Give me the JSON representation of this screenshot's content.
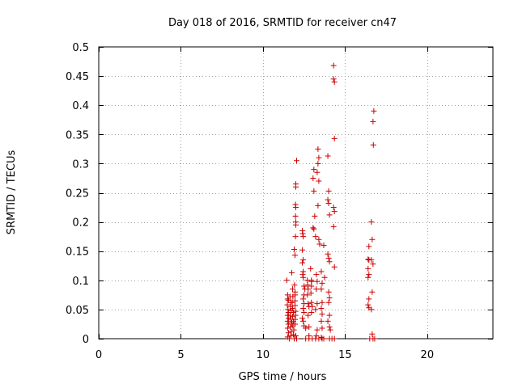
{
  "chart_data": {
    "type": "scatter",
    "title": "Day 018 of 2016, SRMTID for receiver cn47",
    "xlabel": "GPS time / hours",
    "ylabel": "SRMTID / TECUs",
    "xlim": [
      0,
      24
    ],
    "ylim": [
      0,
      0.5
    ],
    "xticks": [
      0,
      5,
      10,
      15,
      20
    ],
    "xtick_labels": [
      "0",
      "5",
      "10",
      "15",
      "20"
    ],
    "yticks": [
      0,
      0.05,
      0.1,
      0.15,
      0.2,
      0.25,
      0.3,
      0.35,
      0.4,
      0.45,
      0.5
    ],
    "ytick_labels": [
      "0",
      "0.05",
      "0.1",
      "0.15",
      "0.2",
      "0.25",
      "0.3",
      "0.35",
      "0.4",
      "0.45",
      "0.5"
    ],
    "grid": true,
    "marker": "+",
    "marker_color": "#cc0000",
    "points": [
      [
        11.45,
        0.1
      ],
      [
        11.5,
        0.075
      ],
      [
        11.5,
        0.068
      ],
      [
        11.55,
        0.066
      ],
      [
        11.48,
        0.058
      ],
      [
        11.52,
        0.05
      ],
      [
        11.55,
        0.045
      ],
      [
        11.5,
        0.04
      ],
      [
        11.55,
        0.035
      ],
      [
        11.5,
        0.03
      ],
      [
        11.55,
        0.025
      ],
      [
        11.5,
        0.018
      ],
      [
        11.55,
        0.01
      ],
      [
        11.5,
        0.003
      ],
      [
        11.6,
        0.0
      ],
      [
        11.65,
        0.072
      ],
      [
        11.7,
        0.062
      ],
      [
        11.68,
        0.055
      ],
      [
        11.72,
        0.048
      ],
      [
        11.65,
        0.04
      ],
      [
        11.7,
        0.033
      ],
      [
        11.75,
        0.027
      ],
      [
        11.68,
        0.02
      ],
      [
        11.72,
        0.012
      ],
      [
        11.7,
        0.005
      ],
      [
        11.75,
        0.113
      ],
      [
        11.8,
        0.085
      ],
      [
        11.82,
        0.072
      ],
      [
        11.78,
        0.062
      ],
      [
        11.8,
        0.052
      ],
      [
        11.85,
        0.045
      ],
      [
        11.8,
        0.038
      ],
      [
        11.85,
        0.03
      ],
      [
        11.82,
        0.022
      ],
      [
        11.88,
        0.015
      ],
      [
        11.85,
        0.007
      ],
      [
        11.9,
        0.0
      ],
      [
        11.92,
        0.092
      ],
      [
        11.95,
        0.08
      ],
      [
        11.95,
        0.075
      ],
      [
        11.95,
        0.065
      ],
      [
        11.95,
        0.057
      ],
      [
        11.98,
        0.047
      ],
      [
        11.98,
        0.04
      ],
      [
        11.95,
        0.033
      ],
      [
        11.95,
        0.025
      ],
      [
        11.9,
        0.153
      ],
      [
        11.95,
        0.143
      ],
      [
        11.98,
        0.175
      ],
      [
        12.05,
        0.305
      ],
      [
        12.0,
        0.265
      ],
      [
        12.0,
        0.26
      ],
      [
        11.98,
        0.23
      ],
      [
        12.0,
        0.225
      ],
      [
        11.98,
        0.21
      ],
      [
        12.0,
        0.2
      ],
      [
        12.0,
        0.195
      ],
      [
        12.0,
        0.005
      ],
      [
        12.05,
        0.0
      ],
      [
        12.4,
        0.185
      ],
      [
        12.42,
        0.18
      ],
      [
        12.45,
        0.175
      ],
      [
        12.4,
        0.152
      ],
      [
        12.45,
        0.135
      ],
      [
        12.4,
        0.13
      ],
      [
        12.45,
        0.115
      ],
      [
        12.42,
        0.11
      ],
      [
        12.45,
        0.105
      ],
      [
        12.5,
        0.09
      ],
      [
        12.55,
        0.085
      ],
      [
        12.5,
        0.075
      ],
      [
        12.45,
        0.068
      ],
      [
        12.5,
        0.06
      ],
      [
        12.45,
        0.052
      ],
      [
        12.5,
        0.045
      ],
      [
        12.4,
        0.035
      ],
      [
        12.45,
        0.03
      ],
      [
        12.5,
        0.022
      ],
      [
        12.6,
        0.018
      ],
      [
        12.6,
        0.0
      ],
      [
        12.7,
        0.1
      ],
      [
        12.72,
        0.092
      ],
      [
        12.75,
        0.085
      ],
      [
        12.7,
        0.075
      ],
      [
        12.75,
        0.06
      ],
      [
        12.8,
        0.055
      ],
      [
        12.75,
        0.04
      ],
      [
        12.8,
        0.02
      ],
      [
        12.8,
        0.005
      ],
      [
        12.8,
        0.0
      ],
      [
        12.9,
        0.12
      ],
      [
        12.95,
        0.1
      ],
      [
        12.95,
        0.098
      ],
      [
        12.95,
        0.09
      ],
      [
        12.92,
        0.078
      ],
      [
        12.95,
        0.062
      ],
      [
        13.0,
        0.055
      ],
      [
        12.95,
        0.045
      ],
      [
        13.0,
        0.0
      ],
      [
        13.05,
        0.19
      ],
      [
        13.1,
        0.188
      ],
      [
        13.1,
        0.253
      ],
      [
        13.05,
        0.275
      ],
      [
        13.1,
        0.29
      ],
      [
        13.15,
        0.21
      ],
      [
        13.2,
        0.175
      ],
      [
        13.2,
        0.0
      ],
      [
        13.25,
        0.11
      ],
      [
        13.3,
        0.098
      ],
      [
        13.25,
        0.085
      ],
      [
        13.3,
        0.06
      ],
      [
        13.2,
        0.05
      ],
      [
        13.3,
        0.015
      ],
      [
        13.25,
        0.005
      ],
      [
        13.35,
        0.325
      ],
      [
        13.4,
        0.31
      ],
      [
        13.35,
        0.3
      ],
      [
        13.3,
        0.285
      ],
      [
        13.4,
        0.27
      ],
      [
        13.35,
        0.228
      ],
      [
        13.4,
        0.17
      ],
      [
        13.45,
        0.162
      ],
      [
        13.4,
        0.0
      ],
      [
        13.55,
        0.115
      ],
      [
        13.6,
        0.095
      ],
      [
        13.55,
        0.085
      ],
      [
        13.6,
        0.062
      ],
      [
        13.55,
        0.052
      ],
      [
        13.6,
        0.042
      ],
      [
        13.55,
        0.03
      ],
      [
        13.6,
        0.018
      ],
      [
        13.55,
        0.002
      ],
      [
        13.6,
        0.0
      ],
      [
        13.7,
        0.16
      ],
      [
        13.75,
        0.105
      ],
      [
        13.7,
        0.0
      ],
      [
        13.95,
        0.313
      ],
      [
        14.0,
        0.253
      ],
      [
        13.95,
        0.238
      ],
      [
        14.0,
        0.232
      ],
      [
        14.05,
        0.212
      ],
      [
        13.95,
        0.145
      ],
      [
        14.0,
        0.138
      ],
      [
        14.05,
        0.132
      ],
      [
        14.0,
        0.08
      ],
      [
        14.05,
        0.07
      ],
      [
        14.0,
        0.062
      ],
      [
        14.05,
        0.04
      ],
      [
        13.95,
        0.03
      ],
      [
        14.05,
        0.02
      ],
      [
        14.1,
        0.015
      ],
      [
        14.05,
        0.0
      ],
      [
        14.2,
        0.0
      ],
      [
        14.3,
        0.468
      ],
      [
        14.3,
        0.445
      ],
      [
        14.35,
        0.44
      ],
      [
        14.35,
        0.343
      ],
      [
        14.3,
        0.225
      ],
      [
        14.35,
        0.218
      ],
      [
        14.3,
        0.192
      ],
      [
        14.35,
        0.123
      ],
      [
        14.35,
        0.0
      ],
      [
        16.4,
        0.136
      ],
      [
        16.45,
        0.135
      ],
      [
        16.4,
        0.12
      ],
      [
        16.45,
        0.11
      ],
      [
        16.4,
        0.105
      ],
      [
        16.45,
        0.068
      ],
      [
        16.4,
        0.058
      ],
      [
        16.45,
        0.053
      ],
      [
        16.45,
        0.158
      ],
      [
        16.5,
        0.0
      ],
      [
        16.6,
        0.2
      ],
      [
        16.65,
        0.17
      ],
      [
        16.6,
        0.135
      ],
      [
        16.7,
        0.128
      ],
      [
        16.65,
        0.08
      ],
      [
        16.6,
        0.05
      ],
      [
        16.65,
        0.008
      ],
      [
        16.7,
        0.0
      ],
      [
        16.75,
        0.39
      ],
      [
        16.7,
        0.372
      ],
      [
        16.72,
        0.332
      ],
      [
        16.8,
        0.0
      ]
    ]
  }
}
